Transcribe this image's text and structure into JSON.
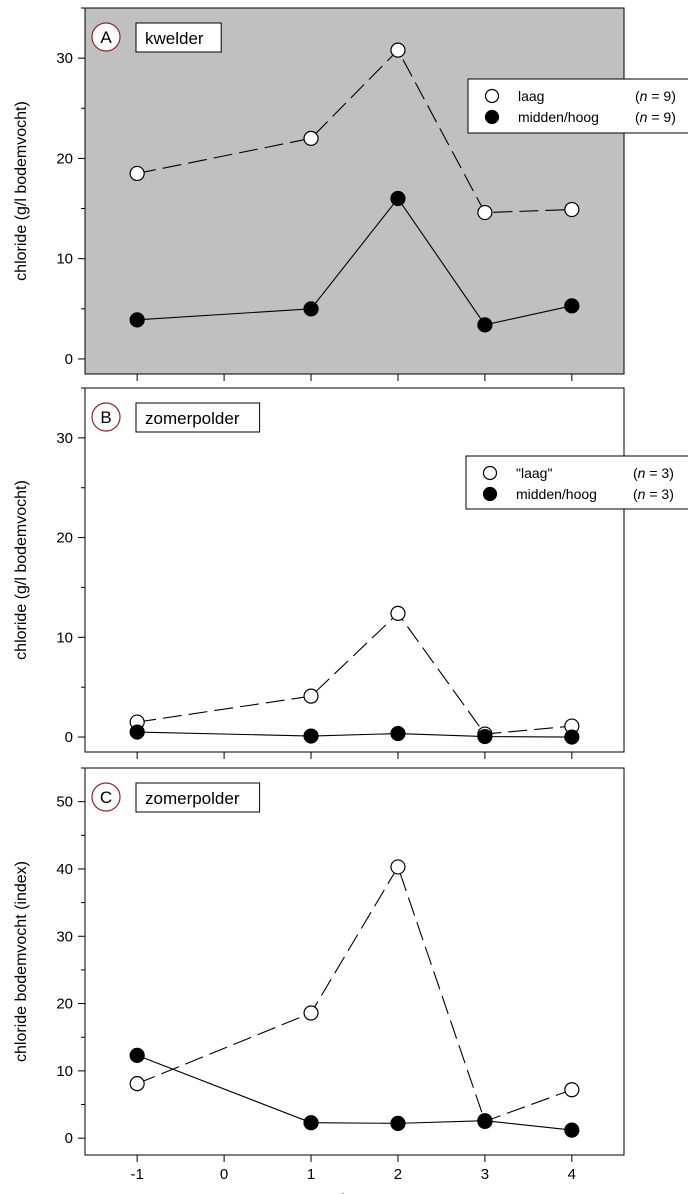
{
  "chart_data": [
    {
      "type": "line",
      "panel_letter": "A",
      "title": "kwelder",
      "background": "#c0c0c0",
      "ylabel": "chloride (g/l bodemvocht)",
      "xlabel": "",
      "xlim": [
        -1.6,
        4.6
      ],
      "ylim": [
        -1.5,
        35
      ],
      "xticks": [
        -1,
        0,
        1,
        2,
        3,
        4
      ],
      "show_xtick_labels": false,
      "yticks": [
        0,
        10,
        20,
        30
      ],
      "ytick_labels": [
        "0",
        "10",
        "20",
        "30"
      ],
      "legend_position": "top-right",
      "series": [
        {
          "name": "laag",
          "n_label": "n",
          "n_value": "= 9",
          "marker": "open",
          "linestyle": "dashed",
          "x": [
            -1,
            1,
            2,
            3,
            4
          ],
          "y": [
            18.5,
            22,
            30.8,
            14.6,
            14.9
          ]
        },
        {
          "name": "midden/hoog",
          "n_label": "n",
          "n_value": "= 9",
          "marker": "filled",
          "linestyle": "solid",
          "x": [
            -1,
            1,
            2,
            3,
            4
          ],
          "y": [
            3.9,
            5.0,
            16.0,
            3.4,
            5.3
          ]
        }
      ]
    },
    {
      "type": "line",
      "panel_letter": "B",
      "title": "zomerpolder",
      "background": "#ffffff",
      "ylabel": "chloride (g/l bodemvocht)",
      "xlabel": "",
      "xlim": [
        -1.6,
        4.6
      ],
      "ylim": [
        -1.5,
        35
      ],
      "xticks": [
        -1,
        0,
        1,
        2,
        3,
        4
      ],
      "show_xtick_labels": false,
      "yticks": [
        0,
        10,
        20,
        30
      ],
      "ytick_labels": [
        "0",
        "10",
        "20",
        "30"
      ],
      "legend_position": "top-right",
      "series": [
        {
          "name": "\"laag\"",
          "n_label": "n",
          "n_value": "= 3",
          "marker": "open",
          "linestyle": "dashed",
          "x": [
            -1,
            1,
            2,
            3,
            4
          ],
          "y": [
            1.5,
            4.1,
            12.4,
            0.3,
            1.1
          ]
        },
        {
          "name": "midden/hoog",
          "n_label": "n",
          "n_value": "= 3",
          "marker": "filled",
          "linestyle": "solid",
          "x": [
            -1,
            1,
            2,
            3,
            4
          ],
          "y": [
            0.5,
            0.1,
            0.35,
            0.05,
            0.0
          ]
        }
      ]
    },
    {
      "type": "line",
      "panel_letter": "C",
      "title": "zomerpolder",
      "background": "#ffffff",
      "ylabel": "chloride bodemvocht (index)",
      "xlabel": "jaar",
      "xlim": [
        -1.6,
        4.6
      ],
      "ylim": [
        -2.5,
        55
      ],
      "xticks": [
        -1,
        0,
        1,
        2,
        3,
        4
      ],
      "xtick_labels": [
        "-1",
        "0",
        "1",
        "2",
        "3",
        "4"
      ],
      "show_xtick_labels": true,
      "yticks": [
        0,
        10,
        20,
        30,
        40,
        50
      ],
      "ytick_labels": [
        "0",
        "10",
        "20",
        "30",
        "40",
        "50"
      ],
      "legend_position": "none",
      "series": [
        {
          "name": "",
          "marker": "open",
          "linestyle": "dashed",
          "x": [
            -1,
            1,
            2,
            3,
            4
          ],
          "y": [
            8.1,
            18.6,
            40.3,
            2.5,
            7.2
          ]
        },
        {
          "name": "",
          "marker": "filled",
          "linestyle": "solid",
          "x": [
            -1,
            1,
            2,
            3,
            4
          ],
          "y": [
            12.3,
            2.3,
            2.2,
            2.6,
            1.2
          ]
        }
      ]
    }
  ]
}
